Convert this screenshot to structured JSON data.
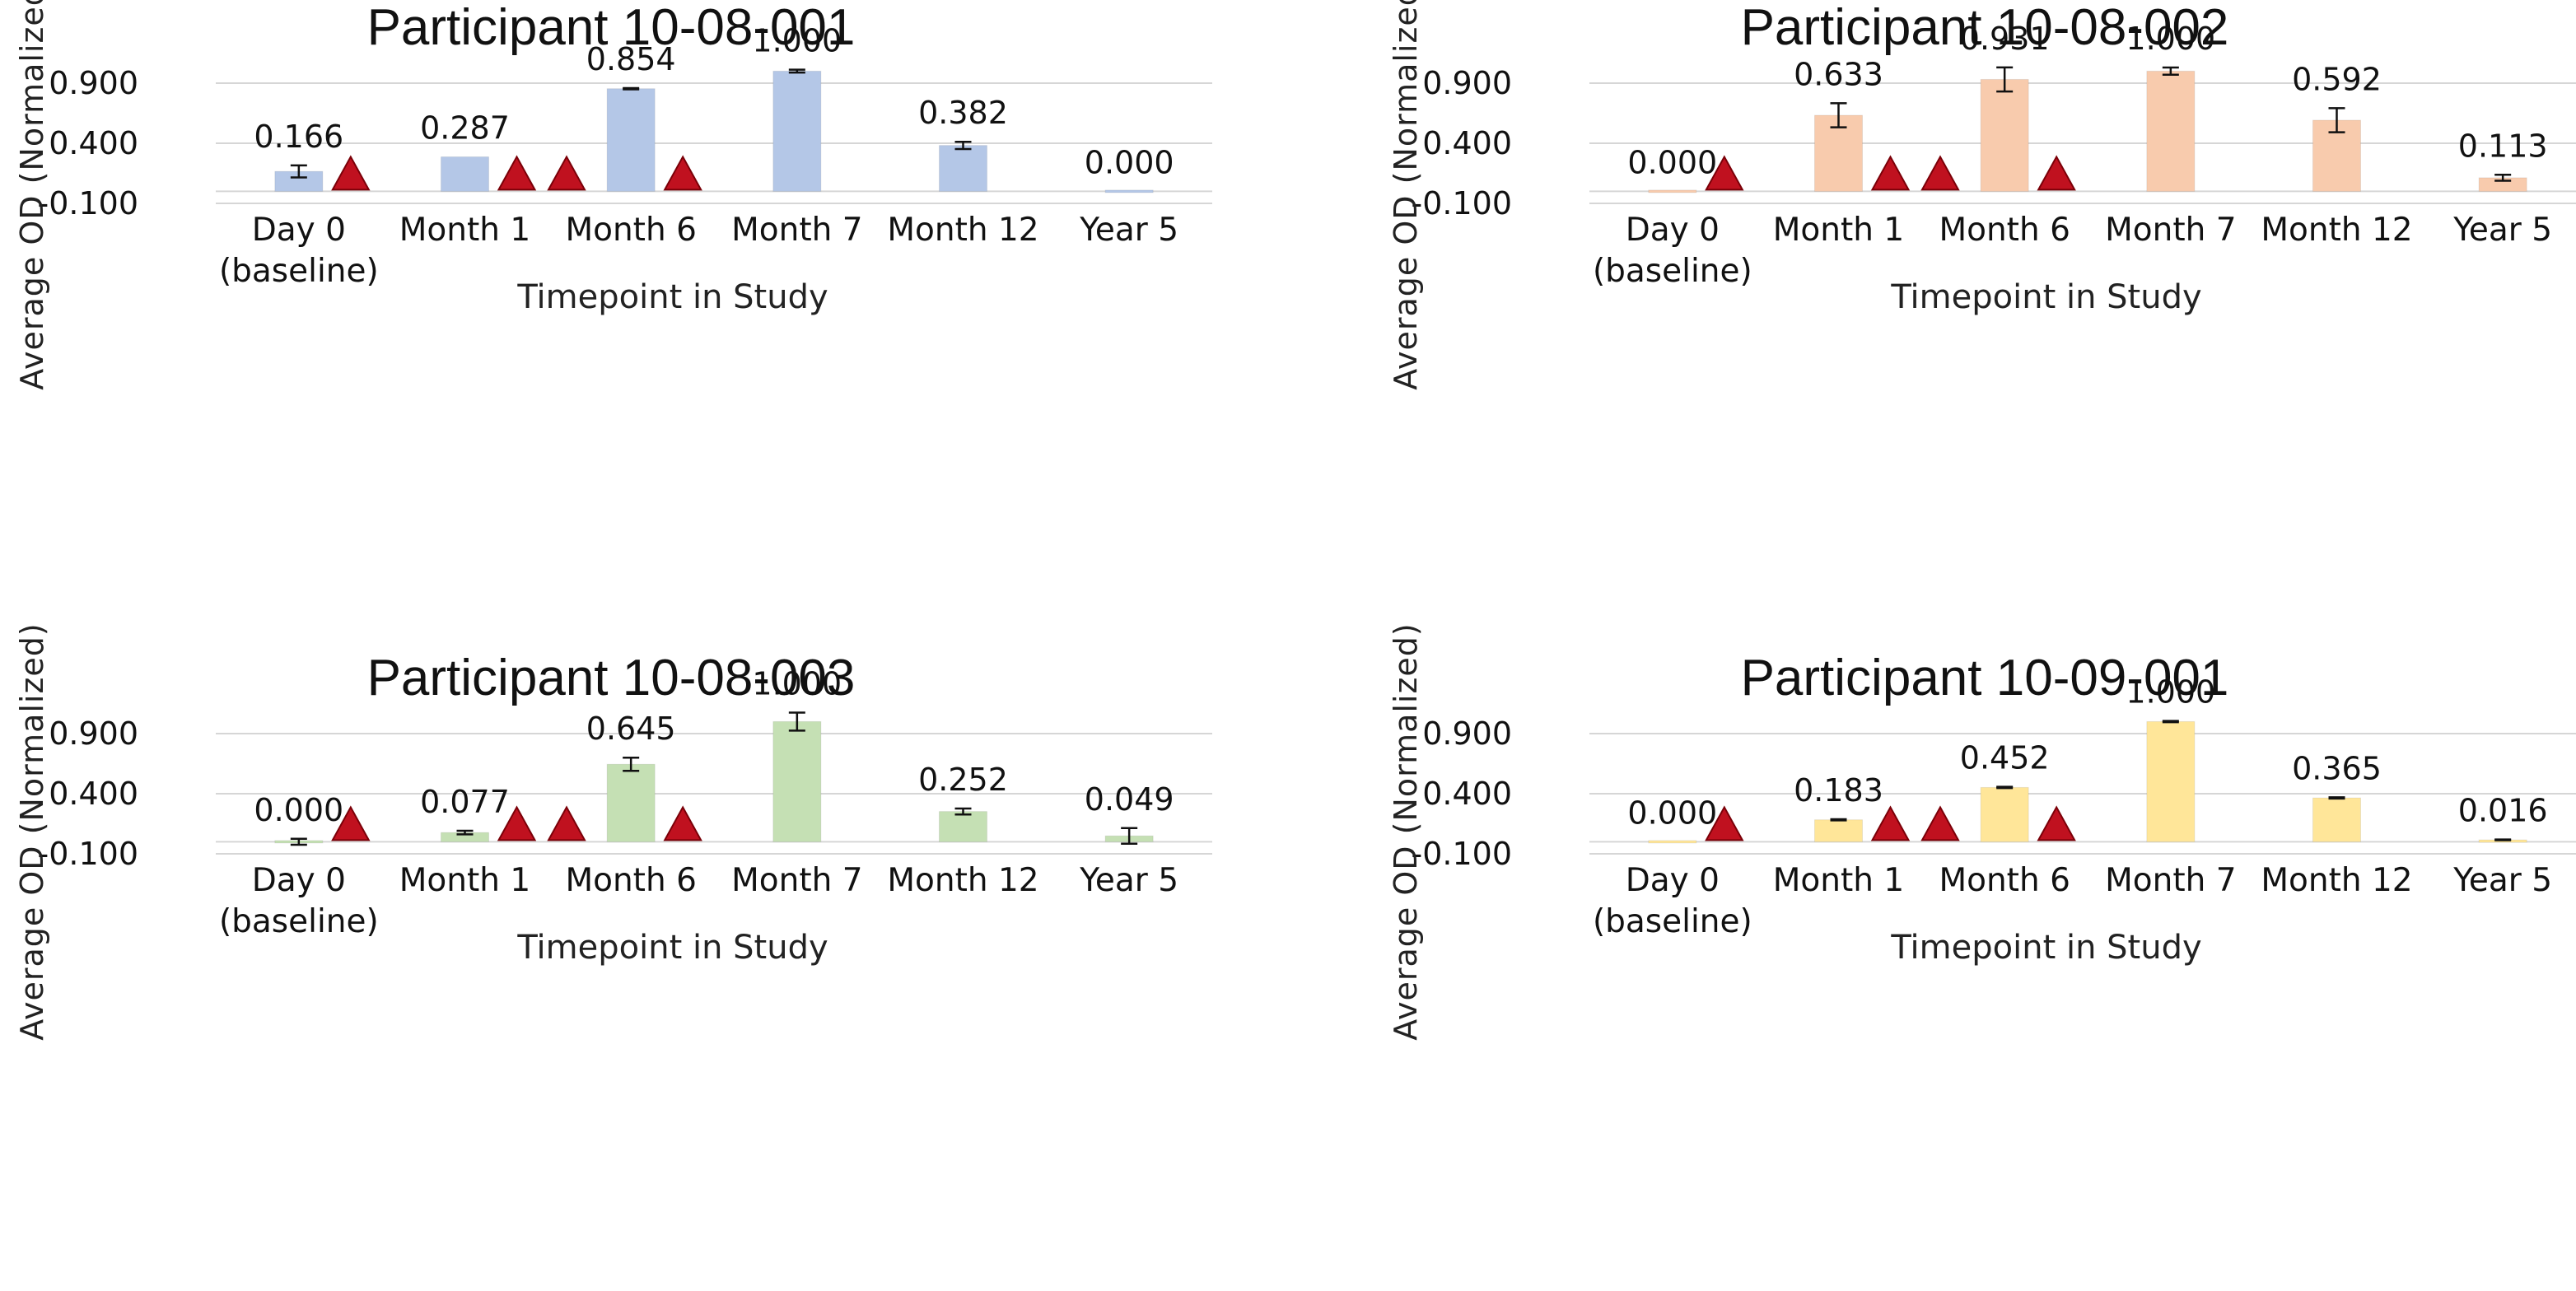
{
  "figure": {
    "marker_color": "#c0111f"
  },
  "chart_data": [
    {
      "type": "bar",
      "title": "Participant 10-08-001",
      "xlabel": "Timepoint in Study",
      "ylabel": "Average OD (Normalized)",
      "ylim": [
        -0.1,
        1.0
      ],
      "yticks": [
        -0.1,
        0.4,
        0.9
      ],
      "ytick_labels": [
        "-0.100",
        "0.400",
        "0.900"
      ],
      "grid": true,
      "color": "#b4c7e7",
      "categories": [
        [
          "Day 0",
          "(baseline)"
        ],
        [
          "Month 1"
        ],
        [
          "Month 6"
        ],
        [
          "Month 7"
        ],
        [
          "Month 12"
        ],
        [
          "Year 5"
        ]
      ],
      "values": [
        0.166,
        0.287,
        0.854,
        1.0,
        0.382,
        0.0
      ],
      "value_labels": [
        "0.166",
        "0.287",
        "0.854",
        "1.000",
        "0.382",
        "0.000"
      ],
      "errors": [
        0.05,
        0.0,
        0.005,
        0.012,
        0.03,
        0.0
      ],
      "markers": [
        [
          0
        ],
        [
          1,
          1
        ],
        [
          2
        ],
        [],
        [],
        []
      ]
    },
    {
      "type": "bar",
      "title": "Participant 10-08-002",
      "xlabel": "Timepoint in Study",
      "ylabel": "Average OD (Normalized)",
      "ylim": [
        -0.1,
        1.0
      ],
      "yticks": [
        -0.1,
        0.4,
        0.9
      ],
      "ytick_labels": [
        "-0.100",
        "0.400",
        "0.900"
      ],
      "grid": true,
      "color": "#f8cbad",
      "categories": [
        [
          "Day 0",
          "(baseline)"
        ],
        [
          "Month 1"
        ],
        [
          "Month 6"
        ],
        [
          "Month 7"
        ],
        [
          "Month 12"
        ],
        [
          "Year 5"
        ]
      ],
      "values": [
        0.0,
        0.633,
        0.931,
        1.0,
        0.592,
        0.113
      ],
      "value_labels": [
        "0.000",
        "0.633",
        "0.931",
        "1.000",
        "0.592",
        "0.113"
      ],
      "errors": [
        0.0,
        0.1,
        0.1,
        0.03,
        0.1,
        0.025
      ],
      "markers": [
        [
          0
        ],
        [
          1,
          1
        ],
        [
          2
        ],
        [],
        [],
        []
      ]
    },
    {
      "type": "bar",
      "title": "Participant 10-08-003",
      "xlabel": "Timepoint in Study",
      "ylabel": "Average OD (Normalized)",
      "ylim": [
        -0.1,
        1.0
      ],
      "yticks": [
        -0.1,
        0.4,
        0.9
      ],
      "ytick_labels": [
        "-0.100",
        "0.400",
        "0.900"
      ],
      "grid": true,
      "color": "#c5e0b4",
      "categories": [
        [
          "Day 0",
          "(baseline)"
        ],
        [
          "Month 1"
        ],
        [
          "Month 6"
        ],
        [
          "Month 7"
        ],
        [
          "Month 12"
        ],
        [
          "Year 5"
        ]
      ],
      "values": [
        0.0,
        0.077,
        0.645,
        1.0,
        0.252,
        0.049
      ],
      "value_labels": [
        "0.000",
        "0.077",
        "0.645",
        "1.000",
        "0.252",
        "0.049"
      ],
      "errors": [
        0.025,
        0.015,
        0.055,
        0.075,
        0.025,
        0.065
      ],
      "markers": [
        [
          0
        ],
        [
          1,
          1
        ],
        [
          2
        ],
        [],
        [],
        []
      ]
    },
    {
      "type": "bar",
      "title": "Participant 10-09-001",
      "xlabel": "Timepoint in Study",
      "ylabel": "Average OD (Normalized)",
      "ylim": [
        -0.1,
        1.0
      ],
      "yticks": [
        -0.1,
        0.4,
        0.9
      ],
      "ytick_labels": [
        "-0.100",
        "0.400",
        "0.900"
      ],
      "grid": true,
      "color": "#ffe699",
      "categories": [
        [
          "Day 0",
          "(baseline)"
        ],
        [
          "Month 1"
        ],
        [
          "Month 6"
        ],
        [
          "Month 7"
        ],
        [
          "Month 12"
        ],
        [
          "Year 5"
        ]
      ],
      "values": [
        0.0,
        0.183,
        0.452,
        1.0,
        0.365,
        0.016
      ],
      "value_labels": [
        "0.000",
        "0.183",
        "0.452",
        "1.000",
        "0.365",
        "0.016"
      ],
      "errors": [
        0.0,
        0.005,
        0.005,
        0.005,
        0.005,
        0.003
      ],
      "markers": [
        [
          0
        ],
        [
          1,
          1
        ],
        [
          2
        ],
        [],
        [],
        []
      ]
    }
  ]
}
